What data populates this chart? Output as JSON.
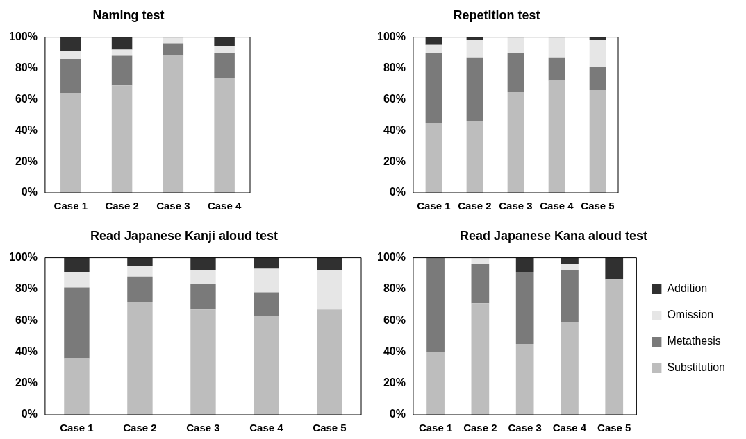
{
  "chart_data": [
    {
      "type": "bar",
      "title": "Naming test",
      "stacked": true,
      "categories": [
        "Case 1",
        "Case 2",
        "Case 3",
        "Case 4"
      ],
      "ylim": [
        0,
        100
      ],
      "yticks": [
        {
          "value": 0,
          "label": "0%"
        },
        {
          "value": 20,
          "label": "20%"
        },
        {
          "value": 40,
          "label": "40%"
        },
        {
          "value": 60,
          "label": "60%"
        },
        {
          "value": 80,
          "label": "80%"
        },
        {
          "value": 100,
          "label": "100%"
        }
      ],
      "grid": false,
      "legend": false,
      "series": [
        {
          "color": "#bdbdbd",
          "values": [
            64,
            69,
            88,
            74
          ]
        },
        {
          "color": "#7a7a7a",
          "values": [
            22,
            19,
            8,
            16
          ]
        },
        {
          "color": "#e6e6e6",
          "values": [
            5,
            4,
            4,
            4
          ]
        },
        {
          "color": "#303030",
          "values": [
            9,
            8,
            0,
            6
          ]
        }
      ]
    },
    {
      "type": "bar",
      "title": "Repetition test",
      "stacked": true,
      "categories": [
        "Case 1",
        "Case 2",
        "Case 3",
        "Case 4",
        "Case 5"
      ],
      "ylim": [
        0,
        100
      ],
      "yticks": [
        {
          "value": 0,
          "label": "0%"
        },
        {
          "value": 20,
          "label": "20%"
        },
        {
          "value": 40,
          "label": "40%"
        },
        {
          "value": 60,
          "label": "60%"
        },
        {
          "value": 80,
          "label": "80%"
        },
        {
          "value": 100,
          "label": "100%"
        }
      ],
      "grid": false,
      "legend": false,
      "series": [
        {
          "color": "#bdbdbd",
          "values": [
            45,
            46,
            65,
            72,
            66
          ]
        },
        {
          "color": "#7a7a7a",
          "values": [
            45,
            41,
            25,
            15,
            15
          ]
        },
        {
          "color": "#e6e6e6",
          "values": [
            5,
            11,
            10,
            13,
            17
          ]
        },
        {
          "color": "#303030",
          "values": [
            5,
            2,
            0,
            0,
            2
          ]
        }
      ]
    },
    {
      "type": "bar",
      "title": "Read Japanese Kanji aloud test",
      "stacked": true,
      "categories": [
        "Case 1",
        "Case 2",
        "Case 3",
        "Case 4",
        "Case 5"
      ],
      "ylim": [
        0,
        100
      ],
      "yticks": [
        {
          "value": 0,
          "label": "0%"
        },
        {
          "value": 20,
          "label": "20%"
        },
        {
          "value": 40,
          "label": "40%"
        },
        {
          "value": 60,
          "label": "60%"
        },
        {
          "value": 80,
          "label": "80%"
        },
        {
          "value": 100,
          "label": "100%"
        }
      ],
      "grid": false,
      "legend": false,
      "series": [
        {
          "color": "#bdbdbd",
          "values": [
            36,
            72,
            67,
            63,
            67
          ]
        },
        {
          "color": "#7a7a7a",
          "values": [
            45,
            16,
            16,
            15,
            0
          ]
        },
        {
          "color": "#e6e6e6",
          "values": [
            10,
            7,
            9,
            15,
            25
          ]
        },
        {
          "color": "#303030",
          "values": [
            9,
            5,
            8,
            7,
            8
          ]
        }
      ]
    },
    {
      "type": "bar",
      "title": "Read Japanese Kana aloud test",
      "stacked": true,
      "categories": [
        "Case 1",
        "Case 2",
        "Case 3",
        "Case 4",
        "Case 5"
      ],
      "ylim": [
        0,
        100
      ],
      "yticks": [
        {
          "value": 0,
          "label": "0%"
        },
        {
          "value": 20,
          "label": "20%"
        },
        {
          "value": 40,
          "label": "40%"
        },
        {
          "value": 60,
          "label": "60%"
        },
        {
          "value": 80,
          "label": "80%"
        },
        {
          "value": 100,
          "label": "100%"
        }
      ],
      "grid": false,
      "legend": "right",
      "series": [
        {
          "name": "Substitution",
          "color": "#bdbdbd",
          "values": [
            40,
            71,
            45,
            59,
            86
          ]
        },
        {
          "name": "Metathesis",
          "color": "#7a7a7a",
          "values": [
            60,
            25,
            46,
            33,
            0
          ]
        },
        {
          "name": "Omission",
          "color": "#e6e6e6",
          "values": [
            0,
            4,
            0,
            4,
            0
          ]
        },
        {
          "name": "Addition",
          "color": "#303030",
          "values": [
            0,
            0,
            9,
            4,
            14
          ]
        }
      ]
    }
  ]
}
